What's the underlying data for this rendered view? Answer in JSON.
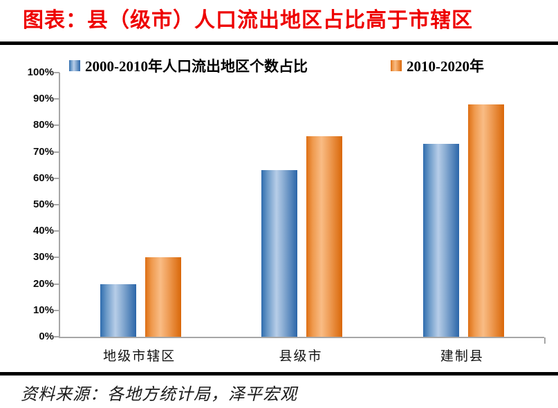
{
  "page": {
    "title": "图表：县（级市）人口流出地区占比高于市辖区",
    "source": "资料来源：各地方统计局，泽平宏观"
  },
  "legend": {
    "items": [
      {
        "label": "2000-2010年人口流出地区个数占比",
        "swatch": "blue-gradient-square"
      },
      {
        "label": "2010-2020年",
        "swatch": "orange-gradient-square"
      }
    ]
  },
  "chart_data": {
    "type": "bar",
    "categories": [
      "地级市辖区",
      "县级市",
      "建制县"
    ],
    "series": [
      {
        "name": "2000-2010年人口流出地区个数占比",
        "color": "#2E6BAD",
        "values": [
          20,
          63,
          73
        ]
      },
      {
        "name": "2010-2020年",
        "color": "#E2731A",
        "values": [
          30,
          76,
          88
        ]
      }
    ],
    "ylabel": "",
    "ylim": [
      0,
      100
    ],
    "ytick_step": 10,
    "yticks": [
      "0%",
      "10%",
      "20%",
      "30%",
      "40%",
      "50%",
      "60%",
      "70%",
      "80%",
      "90%",
      "100%"
    ],
    "grid": false,
    "legend_position": "top"
  },
  "colors": {
    "title_red": "#EE0000",
    "rule_black": "#000000",
    "axis_gray": "#A6A6A6",
    "blue_edge": "#2B66A9",
    "blue_highlight": "#B7CDE8",
    "orange_edge": "#D96708",
    "orange_highlight": "#F9BC85"
  }
}
